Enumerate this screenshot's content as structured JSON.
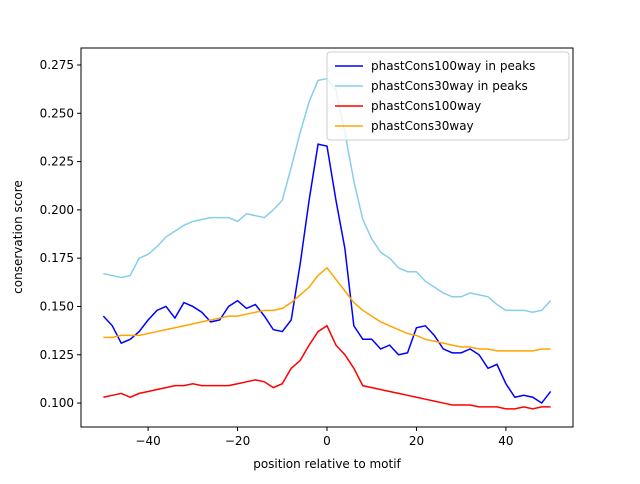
{
  "chart_data": {
    "type": "line",
    "x_label": "position relative to motif",
    "y_label": "conservation score",
    "x": [
      -50,
      -48,
      -46,
      -44,
      -42,
      -40,
      -38,
      -36,
      -34,
      -32,
      -30,
      -28,
      -26,
      -24,
      -22,
      -20,
      -18,
      -16,
      -14,
      -12,
      -10,
      -8,
      -6,
      -4,
      -2,
      0,
      2,
      4,
      6,
      8,
      10,
      12,
      14,
      16,
      18,
      20,
      22,
      24,
      26,
      28,
      30,
      32,
      34,
      36,
      38,
      40,
      42,
      44,
      46,
      48,
      50
    ],
    "series": [
      {
        "name": "phastCons100way in peaks",
        "color": "#0000ff",
        "values": [
          0.145,
          0.14,
          0.131,
          0.133,
          0.137,
          0.143,
          0.148,
          0.15,
          0.144,
          0.152,
          0.15,
          0.147,
          0.142,
          0.143,
          0.15,
          0.153,
          0.149,
          0.151,
          0.145,
          0.138,
          0.137,
          0.143,
          0.172,
          0.205,
          0.234,
          0.233,
          0.205,
          0.18,
          0.14,
          0.133,
          0.133,
          0.128,
          0.13,
          0.125,
          0.126,
          0.139,
          0.14,
          0.135,
          0.128,
          0.126,
          0.126,
          0.128,
          0.125,
          0.118,
          0.12,
          0.11,
          0.103,
          0.104,
          0.103,
          0.1,
          0.106
        ]
      },
      {
        "name": "phastCons30way in peaks",
        "color": "#87ceeb",
        "values": [
          0.167,
          0.166,
          0.165,
          0.166,
          0.175,
          0.177,
          0.181,
          0.186,
          0.189,
          0.192,
          0.194,
          0.195,
          0.196,
          0.196,
          0.196,
          0.194,
          0.198,
          0.197,
          0.196,
          0.2,
          0.205,
          0.222,
          0.24,
          0.256,
          0.267,
          0.268,
          0.262,
          0.24,
          0.215,
          0.195,
          0.185,
          0.178,
          0.175,
          0.17,
          0.168,
          0.168,
          0.163,
          0.16,
          0.157,
          0.155,
          0.155,
          0.157,
          0.156,
          0.155,
          0.151,
          0.148,
          0.148,
          0.148,
          0.147,
          0.148,
          0.153
        ]
      },
      {
        "name": "phastCons100way",
        "color": "#ff0000",
        "values": [
          0.103,
          0.104,
          0.105,
          0.103,
          0.105,
          0.106,
          0.107,
          0.108,
          0.109,
          0.109,
          0.11,
          0.109,
          0.109,
          0.109,
          0.109,
          0.11,
          0.111,
          0.112,
          0.111,
          0.108,
          0.11,
          0.118,
          0.122,
          0.13,
          0.137,
          0.14,
          0.13,
          0.125,
          0.118,
          0.109,
          0.108,
          0.107,
          0.106,
          0.105,
          0.104,
          0.103,
          0.102,
          0.101,
          0.1,
          0.099,
          0.099,
          0.099,
          0.098,
          0.098,
          0.098,
          0.097,
          0.097,
          0.098,
          0.097,
          0.098,
          0.098
        ]
      },
      {
        "name": "phastCons30way",
        "color": "#ffa500",
        "values": [
          0.134,
          0.134,
          0.135,
          0.135,
          0.135,
          0.136,
          0.137,
          0.138,
          0.139,
          0.14,
          0.141,
          0.142,
          0.143,
          0.144,
          0.145,
          0.145,
          0.146,
          0.147,
          0.148,
          0.148,
          0.149,
          0.152,
          0.156,
          0.16,
          0.166,
          0.17,
          0.164,
          0.158,
          0.152,
          0.148,
          0.145,
          0.142,
          0.14,
          0.138,
          0.136,
          0.135,
          0.133,
          0.132,
          0.131,
          0.13,
          0.129,
          0.129,
          0.128,
          0.128,
          0.127,
          0.127,
          0.127,
          0.127,
          0.127,
          0.128,
          0.128
        ]
      }
    ],
    "xlim": [
      -55,
      55
    ],
    "ylim": [
      0.0876,
      0.2838
    ],
    "xticks": [
      {
        "value": -40,
        "label": "−40"
      },
      {
        "value": -20,
        "label": "−20"
      },
      0,
      20,
      40
    ],
    "yticks": [
      {
        "value": 0.1,
        "label": "0.100"
      },
      {
        "value": 0.125,
        "label": "0.125"
      },
      {
        "value": 0.15,
        "label": "0.150"
      },
      {
        "value": 0.175,
        "label": "0.175"
      },
      {
        "value": 0.2,
        "label": "0.200"
      },
      {
        "value": 0.225,
        "label": "0.225"
      },
      {
        "value": 0.25,
        "label": "0.250"
      },
      {
        "value": 0.275,
        "label": "0.275"
      }
    ],
    "grid": false,
    "legend": "upper-right"
  }
}
